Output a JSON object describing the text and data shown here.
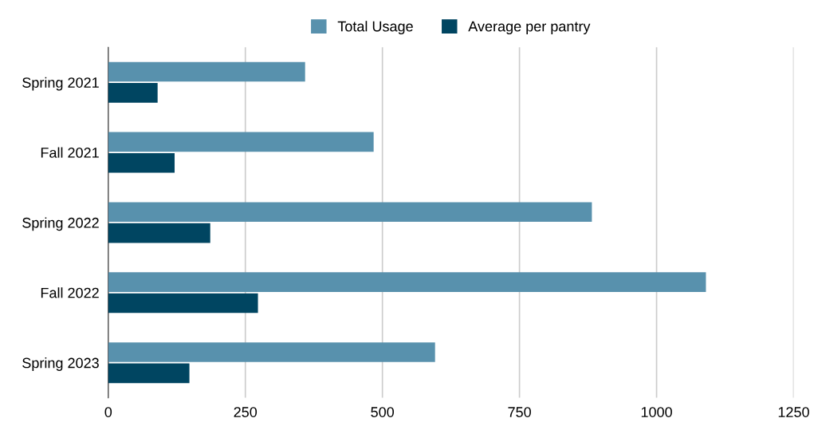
{
  "chart_data": {
    "type": "bar",
    "orientation": "horizontal",
    "categories": [
      "Spring 2021",
      "Fall 2021",
      "Spring 2022",
      "Fall 2022",
      "Spring 2023"
    ],
    "series": [
      {
        "name": "Total Usage",
        "color": "#5891ad",
        "values": [
          359,
          484,
          882,
          1090,
          596
        ]
      },
      {
        "name": "Average per pantry",
        "color": "#004561",
        "values": [
          90,
          121,
          186,
          273,
          148
        ]
      }
    ],
    "xlim": [
      0,
      1250
    ],
    "xticks": [
      0,
      250,
      500,
      750,
      1000,
      1250
    ],
    "grid": "x",
    "legend": "top"
  }
}
